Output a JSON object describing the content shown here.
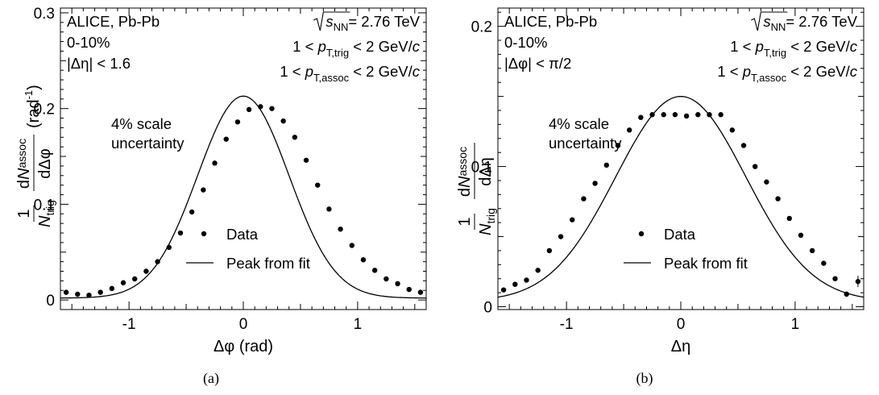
{
  "chart_data": [
    {
      "type": "scatter",
      "panel_label": "(a)",
      "xlabel": "Δφ (rad)",
      "ylabel": {
        "prefix": "1",
        "denom": "N",
        "denom_sub": "trig",
        "num": "dN",
        "num_sub": "assoc",
        "diff": "dΔφ",
        "unit": "(rad",
        "unit_sup": "-1",
        "unit_close": ")"
      },
      "xlim": [
        -1.6,
        1.6
      ],
      "ylim": [
        -0.01,
        0.305
      ],
      "xticks": [
        -1,
        0,
        1
      ],
      "xtick_labels": [
        "-1",
        "0",
        "1"
      ],
      "yticks": [
        0,
        0.1,
        0.2,
        0.3
      ],
      "ytick_labels": [
        "0",
        "0.1",
        "0.2",
        "0.3"
      ],
      "text_left": [
        "ALICE, Pb-Pb",
        "0-10%",
        "|Δη| < 1.6"
      ],
      "text_right": {
        "sqrt": "s",
        "sqrt_sub": "NN",
        "energy": " = 2.76 TeV",
        "trig_pre": "1 < ",
        "trig_p": "p",
        "trig_sub": "T,trig",
        "trig_post": " < 2 GeV/",
        "trig_c": "c",
        "assoc_pre": "1 < ",
        "assoc_p": "p",
        "assoc_sub": "T,assoc",
        "assoc_post": " < 2 GeV/",
        "assoc_c": "c"
      },
      "scale_note": [
        "4% scale",
        "uncertainty"
      ],
      "legend": {
        "position": "center-bottom",
        "data_label": "Data",
        "fit_label": "Peak from fit"
      },
      "fit": {
        "kind": "gaussian",
        "amplitude": 0.211,
        "baseline": 0.002,
        "sigma": 0.4
      },
      "series": [
        {
          "name": "Data",
          "x": [
            -1.55,
            -1.45,
            -1.35,
            -1.25,
            -1.15,
            -1.05,
            -0.95,
            -0.85,
            -0.75,
            -0.65,
            -0.55,
            -0.45,
            -0.35,
            -0.25,
            -0.15,
            -0.05,
            0.05,
            0.15,
            0.25,
            0.35,
            0.45,
            0.55,
            0.65,
            0.75,
            0.85,
            0.95,
            1.05,
            1.15,
            1.25,
            1.35,
            1.45,
            1.55
          ],
          "y": [
            0.008,
            0.006,
            0.005,
            0.008,
            0.012,
            0.018,
            0.022,
            0.03,
            0.04,
            0.055,
            0.07,
            0.092,
            0.115,
            0.143,
            0.168,
            0.186,
            0.199,
            0.202,
            0.2,
            0.187,
            0.17,
            0.146,
            0.12,
            0.095,
            0.074,
            0.057,
            0.042,
            0.031,
            0.022,
            0.017,
            0.011,
            0.008
          ]
        }
      ]
    },
    {
      "type": "scatter",
      "panel_label": "(b)",
      "xlabel": "Δη",
      "ylabel": {
        "prefix": "1",
        "denom": "N",
        "denom_sub": "trig",
        "num": "dN",
        "num_sub": "assoc",
        "diff": "dΔη",
        "unit": "",
        "unit_sup": "",
        "unit_close": ""
      },
      "xlim": [
        -1.6,
        1.6
      ],
      "ylim": [
        -0.002,
        0.213
      ],
      "xticks": [
        -1,
        0,
        1
      ],
      "xtick_labels": [
        "-1",
        "0",
        "1"
      ],
      "yticks": [
        0,
        0.1,
        0.2
      ],
      "ytick_labels": [
        "0",
        "0.1",
        "0.2"
      ],
      "text_left": [
        "ALICE, Pb-Pb",
        "0-10%",
        "|Δφ| < π/2"
      ],
      "text_right": {
        "sqrt": "s",
        "sqrt_sub": "NN",
        "energy": " = 2.76 TeV",
        "trig_pre": "1 < ",
        "trig_p": "p",
        "trig_sub": "T,trig",
        "trig_post": " < 2 GeV/",
        "trig_c": "c",
        "assoc_pre": "1 < ",
        "assoc_p": "p",
        "assoc_sub": "T,assoc",
        "assoc_post": " < 2 GeV/",
        "assoc_c": "c"
      },
      "scale_note": [
        "4% scale",
        "uncertainty"
      ],
      "legend": {
        "position": "center-bottom",
        "data_label": "Data",
        "fit_label": "Peak from fit"
      },
      "fit": {
        "kind": "gaussian",
        "amplitude": 0.146,
        "baseline": 0.004,
        "sigma": 0.57
      },
      "series": [
        {
          "name": "Data",
          "x": [
            -1.55,
            -1.45,
            -1.35,
            -1.25,
            -1.15,
            -1.05,
            -0.95,
            -0.85,
            -0.75,
            -0.65,
            -0.55,
            -0.45,
            -0.35,
            -0.25,
            -0.15,
            -0.05,
            0.05,
            0.15,
            0.25,
            0.35,
            0.45,
            0.55,
            0.65,
            0.75,
            0.85,
            0.95,
            1.05,
            1.15,
            1.25,
            1.35,
            1.45,
            1.55
          ],
          "y": [
            0.012,
            0.016,
            0.019,
            0.026,
            0.04,
            0.05,
            0.062,
            0.077,
            0.088,
            0.101,
            0.115,
            0.126,
            0.135,
            0.137,
            0.137,
            0.137,
            0.136,
            0.137,
            0.137,
            0.137,
            0.126,
            0.115,
            0.1,
            0.089,
            0.077,
            0.063,
            0.051,
            0.04,
            0.031,
            0.02,
            0.009,
            0.018
          ],
          "err": [
            0,
            0,
            0,
            0,
            0,
            0,
            0,
            0,
            0,
            0,
            0,
            0,
            0,
            0,
            0,
            0,
            0,
            0,
            0,
            0,
            0,
            0,
            0,
            0,
            0,
            0,
            0,
            0,
            0,
            0,
            0,
            0.004
          ]
        }
      ]
    }
  ]
}
